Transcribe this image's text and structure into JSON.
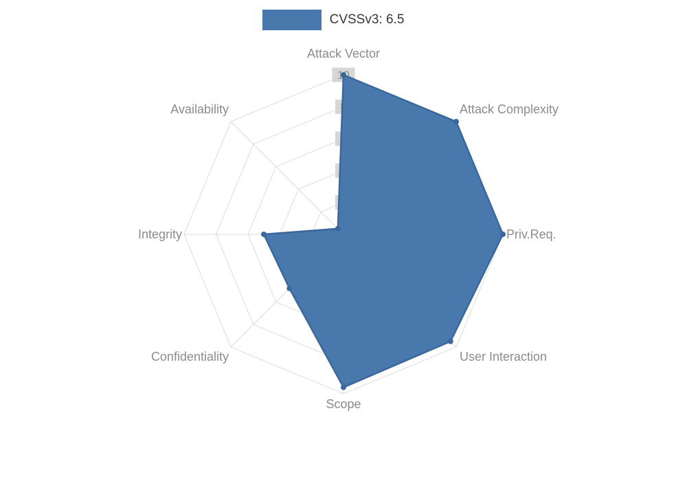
{
  "legend": {
    "label": "CVSSv3: 6.5"
  },
  "chart_data": {
    "type": "radar",
    "title": "CVSSv3: 6.5",
    "categories": [
      "Attack Vector",
      "Attack Complexity",
      "Priv.Req.",
      "User Interaction",
      "Scope",
      "Confidentiality",
      "Integrity",
      "Availability"
    ],
    "series": [
      {
        "name": "CVSSv3: 6.5",
        "values": [
          10,
          10,
          10,
          9.5,
          9.6,
          4.8,
          5,
          0.5
        ]
      }
    ],
    "ticks": [
      2,
      4,
      6,
      8,
      10
    ],
    "rmin": 0,
    "rmax": 10,
    "grid": true,
    "grid_shape": "polygon",
    "legend_position": "top",
    "colors": {
      "fill": "#4878AC",
      "stroke": "#3B689C",
      "point": "#3B689C",
      "grid_line": "#DCDCDC",
      "tick_text": "#8C8C8C",
      "tick_backdrop": "#D6D6D6",
      "axis_label": "#8C8C8C",
      "legend_text": "#363636",
      "background": "#FFFFFF"
    }
  }
}
